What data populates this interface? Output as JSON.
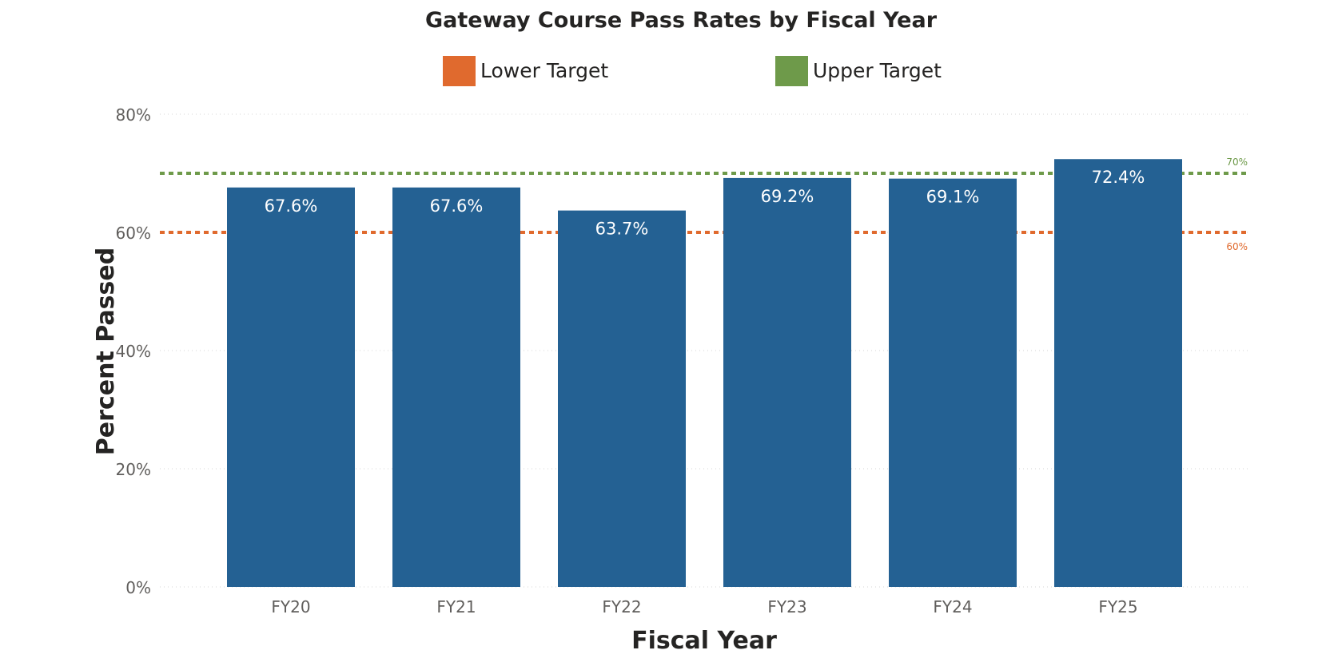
{
  "chart_data": {
    "type": "bar",
    "title": "Gateway Course Pass Rates by Fiscal Year",
    "xlabel": "Fiscal Year",
    "ylabel": "Percent Passed",
    "categories": [
      "FY20",
      "FY21",
      "FY22",
      "FY23",
      "FY24",
      "FY25"
    ],
    "values": [
      67.6,
      67.6,
      63.7,
      69.2,
      69.1,
      72.4
    ],
    "data_labels": [
      "67.6%",
      "67.6%",
      "63.7%",
      "69.2%",
      "69.1%",
      "72.4%"
    ],
    "ylim": [
      0,
      80
    ],
    "yticks": [
      0,
      20,
      40,
      60,
      80
    ],
    "ytick_labels": [
      "0%",
      "20%",
      "40%",
      "60%",
      "80%"
    ],
    "grid": true,
    "legend_position": "top-center",
    "bar_color": "#246193",
    "reference_lines": [
      {
        "name": "Lower Target",
        "value": 60,
        "label": "60%",
        "color": "#E06A2E",
        "style": "dotted"
      },
      {
        "name": "Upper Target",
        "value": 70,
        "label": "70%",
        "color": "#6E9A4A",
        "style": "dotted"
      }
    ]
  }
}
